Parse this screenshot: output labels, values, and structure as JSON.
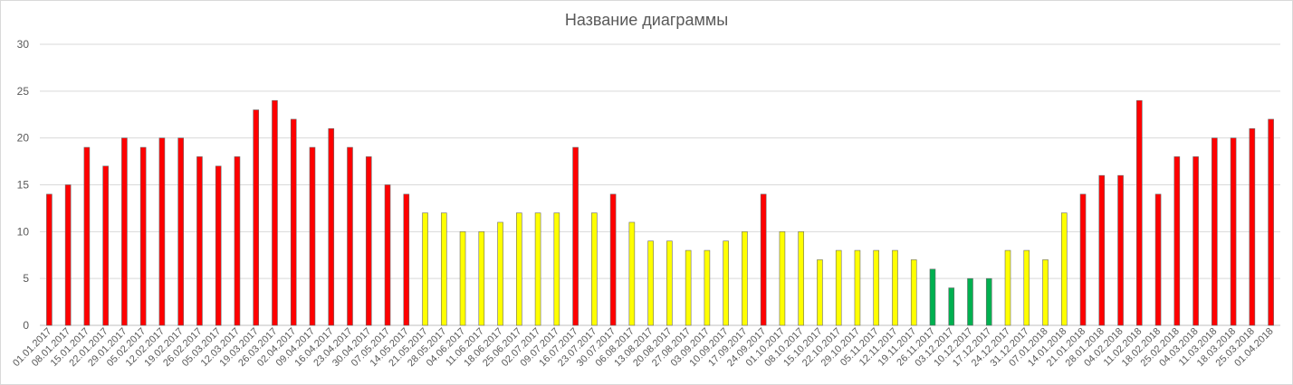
{
  "chart_data": {
    "type": "bar",
    "title": "Название диаграммы",
    "xlabel": "",
    "ylabel": "",
    "ylim": [
      0,
      30
    ],
    "yticks": [
      0,
      5,
      10,
      15,
      20,
      25,
      30
    ],
    "grid": true,
    "legend": "none",
    "categories": [
      "01.01.2017",
      "08.01.2017",
      "15.01.2017",
      "22.01.2017",
      "29.01.2017",
      "05.02.2017",
      "12.02.2017",
      "19.02.2017",
      "26.02.2017",
      "05.03.2017",
      "12.03.2017",
      "19.03.2017",
      "26.03.2017",
      "02.04.2017",
      "09.04.2017",
      "16.04.2017",
      "23.04.2017",
      "30.04.2017",
      "07.05.2017",
      "14.05.2017",
      "21.05.2017",
      "28.05.2017",
      "04.06.2017",
      "11.06.2017",
      "18.06.2017",
      "25.06.2017",
      "02.07.2017",
      "09.07.2017",
      "16.07.2017",
      "23.07.2017",
      "30.07.2017",
      "06.08.2017",
      "13.08.2017",
      "20.08.2017",
      "27.08.2017",
      "03.09.2017",
      "10.09.2017",
      "17.09.2017",
      "24.09.2017",
      "01.10.2017",
      "08.10.2017",
      "15.10.2017",
      "22.10.2017",
      "29.10.2017",
      "05.11.2017",
      "12.11.2017",
      "19.11.2017",
      "26.11.2017",
      "03.12.2017",
      "10.12.2017",
      "17.12.2017",
      "24.12.2017",
      "31.12.2017",
      "07.01.2018",
      "14.01.2018",
      "21.01.2018",
      "28.01.2018",
      "04.02.2018",
      "11.02.2018",
      "18.02.2018",
      "25.02.2018",
      "04.03.2018",
      "11.03.2018",
      "18.03.2018",
      "25.03.2018",
      "01.04.2018"
    ],
    "values": [
      14,
      15,
      19,
      17,
      20,
      19,
      20,
      20,
      18,
      17,
      18,
      23,
      24,
      22,
      19,
      21,
      19,
      18,
      15,
      14,
      12,
      12,
      10,
      10,
      11,
      12,
      12,
      12,
      19,
      12,
      14,
      11,
      9,
      9,
      8,
      8,
      9,
      10,
      14,
      10,
      10,
      7,
      8,
      8,
      8,
      8,
      7,
      6,
      4,
      5,
      5,
      8,
      8,
      7,
      12,
      14,
      16,
      16,
      24,
      14,
      18,
      18,
      20,
      20,
      21,
      22
    ],
    "colors": {
      "red": "#ff0000",
      "yellow": "#ffff00",
      "green": "#00b050"
    }
  }
}
